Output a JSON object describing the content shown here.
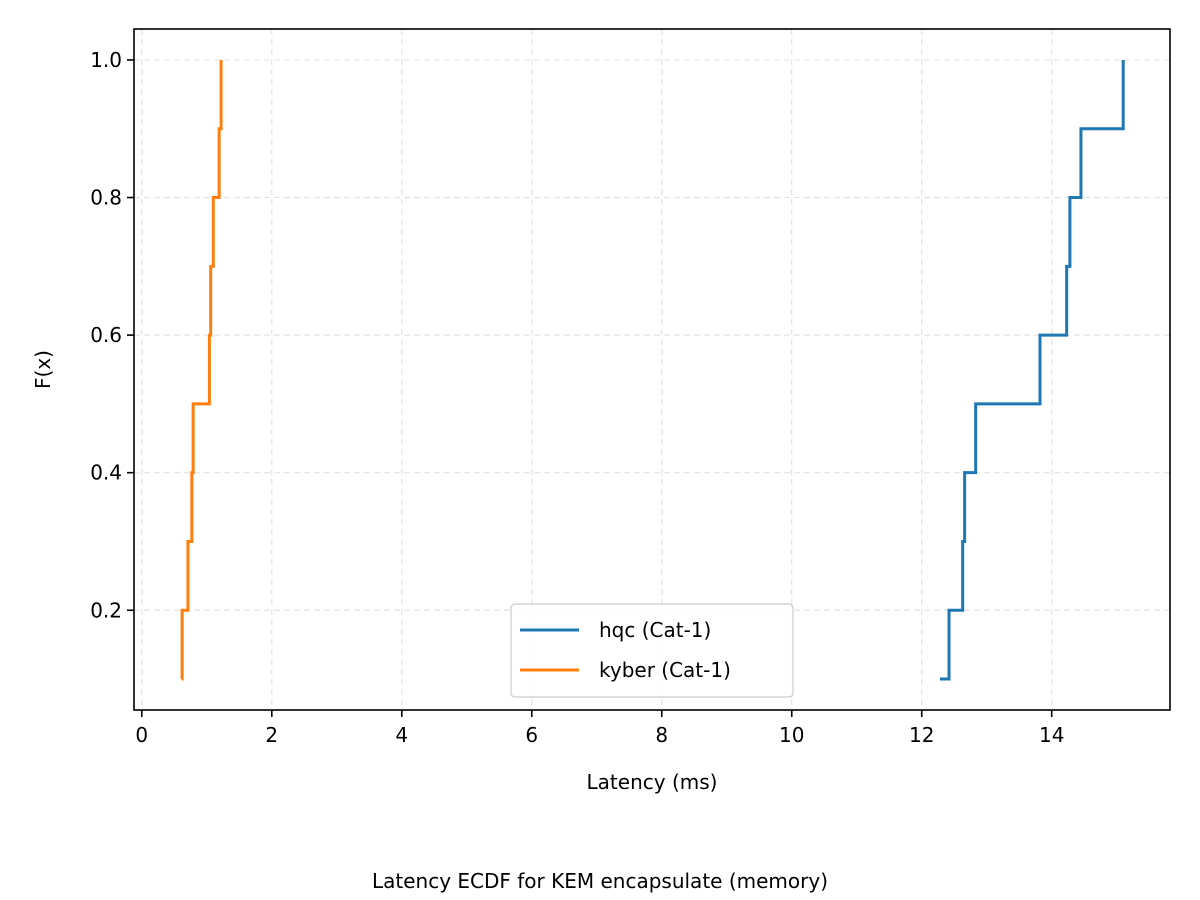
{
  "chart_data": {
    "type": "line",
    "subtype": "ecdf-step",
    "title": "",
    "caption": "Latency ECDF for KEM encapsulate (memory)",
    "xlabel": "Latency (ms)",
    "ylabel": "F(x)",
    "xlim": [
      -0.12,
      15.82
    ],
    "ylim": [
      0.055,
      1.045
    ],
    "xticks": [
      0,
      2,
      4,
      6,
      8,
      10,
      12,
      14
    ],
    "xtick_labels": [
      "0",
      "2",
      "4",
      "6",
      "8",
      "10",
      "12",
      "14"
    ],
    "yticks": [
      0.2,
      0.4,
      0.6,
      0.8,
      1.0
    ],
    "ytick_labels": [
      "0.2",
      "0.4",
      "0.6",
      "0.8",
      "1.0"
    ],
    "grid": true,
    "legend_position": "bottom-center",
    "series": [
      {
        "name": "hqc (Cat-1)",
        "color": "#1f77b4",
        "x": [
          12.28,
          12.42,
          12.63,
          12.66,
          12.83,
          13.82,
          14.23,
          14.28,
          14.45,
          15.1
        ],
        "y": [
          0.1,
          0.2,
          0.3,
          0.4,
          0.5,
          0.6,
          0.7,
          0.8,
          0.9,
          1.0
        ]
      },
      {
        "name": "kyber (Cat-1)",
        "color": "#ff7f0e",
        "x": [
          0.61,
          0.62,
          0.71,
          0.77,
          0.79,
          1.04,
          1.06,
          1.1,
          1.19,
          1.22
        ],
        "y": [
          0.1,
          0.2,
          0.3,
          0.4,
          0.5,
          0.6,
          0.7,
          0.8,
          0.9,
          1.0
        ]
      }
    ]
  }
}
